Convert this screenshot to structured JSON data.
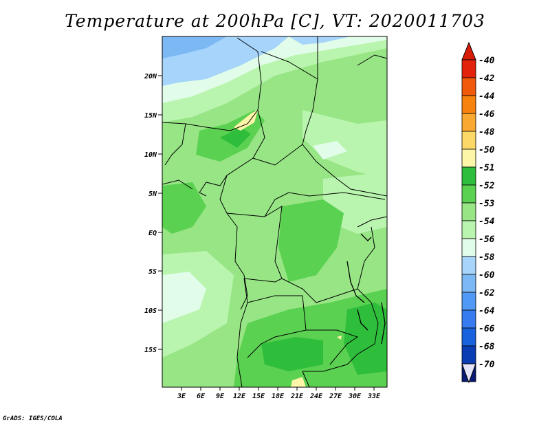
{
  "title": "Temperature at 200hPa [C], VT: 2020011703",
  "credit": "GrADS: IGES/COLA",
  "map": {
    "lat_labels": [
      "20N",
      "15N",
      "10N",
      "5N",
      "EQ",
      "5S",
      "10S",
      "15S"
    ],
    "lon_labels": [
      "3E",
      "6E",
      "9E",
      "12E",
      "15E",
      "18E",
      "21E",
      "24E",
      "27E",
      "30E",
      "33E"
    ]
  },
  "legend": {
    "labels": [
      "-40",
      "-42",
      "-44",
      "-46",
      "-48",
      "-50",
      "-51",
      "-52",
      "-53",
      "-54",
      "-56",
      "-58",
      "-60",
      "-62",
      "-64",
      "-66",
      "-68",
      "-70"
    ],
    "colors": [
      "#e2220a",
      "#f05a0a",
      "#f8820e",
      "#f9a832",
      "#fbd868",
      "#fdf5a8",
      "#2fbe3c",
      "#5ad150",
      "#97e585",
      "#b9f5ae",
      "#e1fde9",
      "#a6d4fb",
      "#7cb8f4",
      "#509af5",
      "#367cf0",
      "#1862de",
      "#0a3cb4",
      "#081a76"
    ],
    "top_arrow_color": "#d61b06",
    "bottom_arrow_color": "#e4e4f8"
  }
}
